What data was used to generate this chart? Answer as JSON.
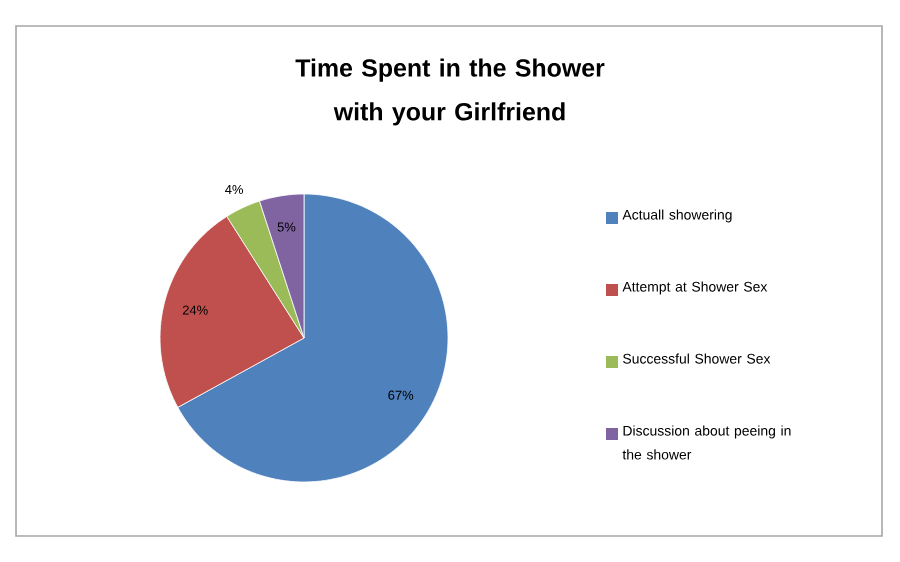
{
  "chart_data": {
    "type": "pie",
    "title": "Time Spent in the Shower with your Girlfriend",
    "categories": [
      "Actuall showering",
      "Attempt at Shower Sex",
      "Successful Shower Sex",
      "Discussion about peeing in the shower"
    ],
    "values": [
      67,
      24,
      4,
      5
    ],
    "colors": [
      "#4f81bd",
      "#c0504d",
      "#9bbb59",
      "#8064a2"
    ],
    "value_labels": [
      "67%",
      "24%",
      "4%",
      "5%"
    ],
    "legend": "right"
  }
}
